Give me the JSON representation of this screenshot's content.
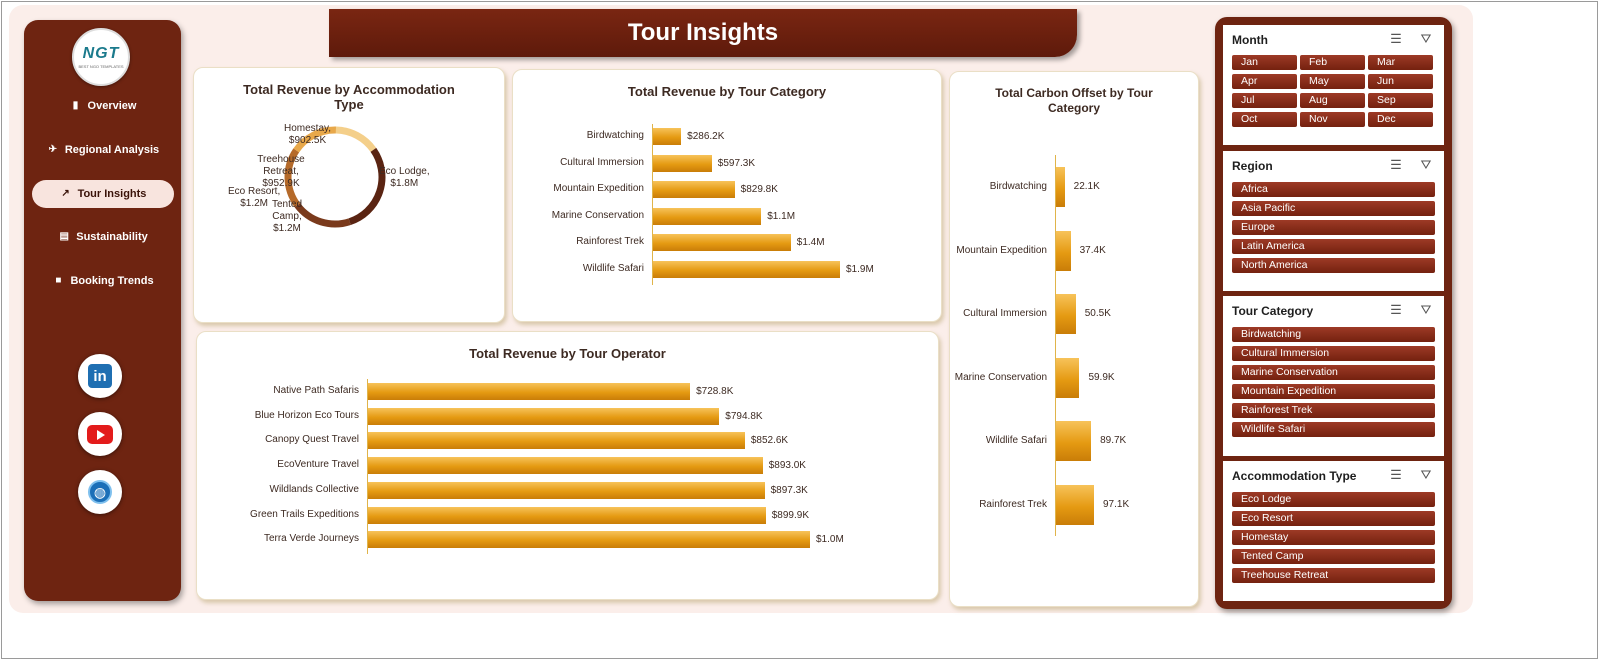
{
  "app": {
    "title": "Tour Insights"
  },
  "sidebar": {
    "logo_text": "NGT",
    "logo_sub": "BEST NGO TEMPLATES",
    "items": [
      {
        "label": "Overview",
        "icon": "bar-chart-icon"
      },
      {
        "label": "Regional Analysis",
        "icon": "world-map-icon"
      },
      {
        "label": "Tour Insights",
        "icon": "line-chart-icon",
        "active": true
      },
      {
        "label": "Sustainability",
        "icon": "clipboard-icon"
      },
      {
        "label": "Booking Trends",
        "icon": "folder-icon"
      }
    ],
    "social": [
      "linkedin-icon",
      "youtube-icon",
      "website-globe-icon"
    ]
  },
  "charts": {
    "accommodation": {
      "title": "Total Revenue by Accommodation Type",
      "labels": [
        {
          "name": "Homestay,",
          "value": "$902.5K"
        },
        {
          "name": "Eco Lodge,",
          "value": "$1.8M"
        },
        {
          "name": "Treehouse Retreat,",
          "value": "$952.9K"
        },
        {
          "name": "Eco Resort,",
          "value": "$1.2M"
        },
        {
          "name": "Tented Camp,",
          "value": "$1.2M"
        }
      ]
    },
    "category": {
      "title": "Total Revenue by Tour Category",
      "labels": [
        "$286.2K",
        "$597.3K",
        "$829.8K",
        "$1.1M",
        "$1.4M",
        "$1.9M"
      ]
    },
    "operator": {
      "title": "Total Revenue by Tour Operator",
      "labels": [
        "$728.8K",
        "$794.8K",
        "$852.6K",
        "$893.0K",
        "$897.3K",
        "$899.9K",
        "$1.0M"
      ]
    },
    "carbon": {
      "title": "Total Carbon Offset by Tour Category",
      "labels": [
        "22.1K",
        "37.4K",
        "50.5K",
        "59.9K",
        "89.7K",
        "97.1K"
      ]
    }
  },
  "chart_data": [
    {
      "type": "pie",
      "title": "Total Revenue by Accommodation Type",
      "categories": [
        "Eco Lodge",
        "Eco Resort",
        "Tented Camp",
        "Treehouse Retreat",
        "Homestay"
      ],
      "values": [
        1800000,
        1200000,
        1200000,
        952900,
        902500
      ],
      "colors": [
        "#5a2412",
        "#7a3a1c",
        "#b56a2a",
        "#e8a84a",
        "#f4cf8a"
      ]
    },
    {
      "type": "bar",
      "title": "Total Revenue by Tour Category",
      "categories": [
        "Birdwatching",
        "Cultural Immersion",
        "Mountain Expedition",
        "Marine Conservation",
        "Rainforest Trek",
        "Wildlife Safari"
      ],
      "values": [
        286200,
        597300,
        829800,
        1100000,
        1400000,
        1900000
      ]
    },
    {
      "type": "bar",
      "title": "Total Revenue by Tour Operator",
      "categories": [
        "Native Path Safaris",
        "Blue Horizon Eco Tours",
        "Canopy Quest Travel",
        "EcoVenture Travel",
        "Wildlands Collective",
        "Green Trails Expeditions",
        "Terra Verde Journeys"
      ],
      "values": [
        728800,
        794800,
        852600,
        893000,
        897300,
        899900,
        1000000
      ]
    },
    {
      "type": "bar",
      "title": "Total Carbon Offset by Tour Category",
      "categories": [
        "Birdwatching",
        "Mountain Expedition",
        "Cultural Immersion",
        "Marine Conservation",
        "Wildlife Safari",
        "Rainforest Trek"
      ],
      "values": [
        22100,
        37400,
        50500,
        59900,
        89700,
        97100
      ]
    }
  ],
  "slicers": [
    {
      "title": "Month",
      "items": [
        "Jan",
        "Feb",
        "Mar",
        "Apr",
        "May",
        "Jun",
        "Jul",
        "Aug",
        "Sep",
        "Oct",
        "Nov",
        "Dec"
      ]
    },
    {
      "title": "Region",
      "items": [
        "Africa",
        "Asia Pacific",
        "Europe",
        "Latin America",
        "North America"
      ]
    },
    {
      "title": "Tour Category",
      "items": [
        "Birdwatching",
        "Cultural Immersion",
        "Marine Conservation",
        "Mountain Expedition",
        "Rainforest Trek",
        "Wildlife Safari"
      ]
    },
    {
      "title": "Accommodation Type",
      "items": [
        "Eco Lodge",
        "Eco Resort",
        "Homestay",
        "Tented Camp",
        "Treehouse Retreat"
      ]
    }
  ],
  "slicer_icons": [
    "multi-select-icon",
    "clear-filter-icon"
  ]
}
